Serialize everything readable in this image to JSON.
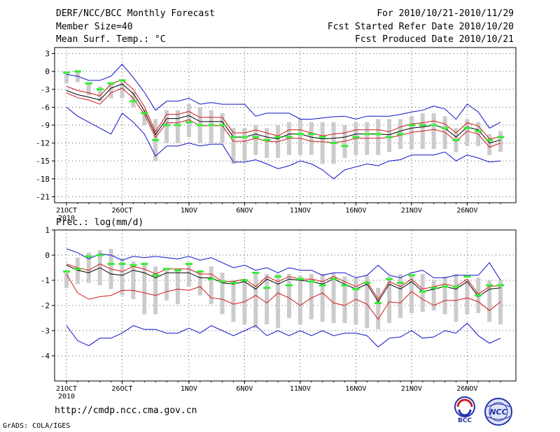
{
  "header": {
    "title": "DERF/NCC/BCC Monthly Forecast",
    "member_size": "Member Size=40",
    "period": "For 2010/10/21-2010/11/29",
    "started": "Fcst Started Refer Date 2010/10/20",
    "produced": "Fcst Produced Date 2010/10/21"
  },
  "footer": {
    "url": "http://cmdp.ncc.cma.gov.cn",
    "grads": "GrADS: COLA/IGES",
    "logo_bcc": "BCC",
    "logo_ncc": "NCC"
  },
  "colors": {
    "envelope": "#1010c8",
    "inner": "#d01818",
    "mean": "#000000",
    "box": "#cccccc",
    "median": "#33ee33",
    "grid": "#555555"
  },
  "chart_data": [
    {
      "type": "line",
      "title": "Mean Surf. Temp.: °C",
      "x": [
        "2010-10-21",
        "2010-10-22",
        "2010-10-23",
        "2010-10-24",
        "2010-10-25",
        "2010-10-26",
        "2010-10-27",
        "2010-10-28",
        "2010-10-29",
        "2010-10-30",
        "2010-10-31",
        "2010-11-01",
        "2010-11-02",
        "2010-11-03",
        "2010-11-04",
        "2010-11-05",
        "2010-11-06",
        "2010-11-07",
        "2010-11-08",
        "2010-11-09",
        "2010-11-10",
        "2010-11-11",
        "2010-11-12",
        "2010-11-13",
        "2010-11-14",
        "2010-11-15",
        "2010-11-16",
        "2010-11-17",
        "2010-11-18",
        "2010-11-19",
        "2010-11-20",
        "2010-11-21",
        "2010-11-22",
        "2010-11-23",
        "2010-11-24",
        "2010-11-25",
        "2010-11-26",
        "2010-11-27",
        "2010-11-28",
        "2010-11-29"
      ],
      "xtick_labels": [
        "21OCT\n2010",
        "26OCT",
        "1NOV",
        "6NOV",
        "11NOV",
        "16NOV",
        "21NOV",
        "26NOV"
      ],
      "xtick_index": [
        0,
        5,
        11,
        16,
        21,
        26,
        31,
        36
      ],
      "ylim": [
        -22,
        4
      ],
      "yticks": [
        3,
        0,
        -3,
        -6,
        -9,
        -12,
        -15,
        -18,
        -21
      ],
      "series": [
        {
          "name": "max",
          "values": [
            -0.5,
            -0.8,
            -1.5,
            -1.5,
            -0.8,
            1.2,
            -1.0,
            -3.5,
            -6.5,
            -5.0,
            -5.0,
            -4.5,
            -5.5,
            -5.2,
            -5.5,
            -5.5,
            -5.5,
            -7.5,
            -7.0,
            -7.0,
            -7.0,
            -8.0,
            -8.0,
            -7.8,
            -7.6,
            -7.5,
            -8.0,
            -7.5,
            -7.5,
            -7.5,
            -7.2,
            -6.8,
            -6.5,
            -5.8,
            -6.3,
            -8.0,
            -5.5,
            -6.8,
            -9.5,
            -8.5
          ]
        },
        {
          "name": "upper",
          "values": [
            -2.5,
            -3.2,
            -3.6,
            -4.1,
            -2.1,
            -1.4,
            -3.0,
            -5.9,
            -10.1,
            -7.2,
            -7.2,
            -6.7,
            -7.7,
            -7.7,
            -7.7,
            -10.3,
            -10.3,
            -9.8,
            -10.3,
            -10.8,
            -9.8,
            -9.8,
            -10.3,
            -10.8,
            -10.5,
            -10.3,
            -9.8,
            -9.8,
            -9.8,
            -10.1,
            -9.3,
            -8.8,
            -8.6,
            -8.3,
            -8.8,
            -10.3,
            -8.6,
            -9.1,
            -11.3,
            -11.0
          ]
        },
        {
          "name": "mean",
          "values": [
            -3.2,
            -3.9,
            -4.3,
            -4.8,
            -2.8,
            -2.1,
            -3.7,
            -6.6,
            -10.6,
            -7.9,
            -7.9,
            -7.4,
            -8.4,
            -8.4,
            -8.4,
            -11.0,
            -11.0,
            -10.5,
            -11.0,
            -11.3,
            -10.5,
            -10.5,
            -11.0,
            -11.3,
            -11.2,
            -11.0,
            -10.5,
            -10.5,
            -10.5,
            -10.6,
            -10.0,
            -9.5,
            -9.3,
            -9.0,
            -9.5,
            -11.0,
            -9.3,
            -9.8,
            -12.0,
            -11.5
          ]
        },
        {
          "name": "lower",
          "values": [
            -3.6,
            -4.4,
            -4.8,
            -5.5,
            -3.6,
            -2.8,
            -4.5,
            -7.2,
            -11.1,
            -8.6,
            -8.6,
            -8.1,
            -9.1,
            -9.1,
            -9.1,
            -11.7,
            -11.7,
            -11.2,
            -11.7,
            -11.8,
            -11.2,
            -11.2,
            -11.7,
            -11.8,
            -11.9,
            -11.7,
            -11.2,
            -11.2,
            -11.2,
            -11.1,
            -10.7,
            -10.2,
            -10.0,
            -9.7,
            -10.2,
            -11.7,
            -10.0,
            -10.5,
            -12.7,
            -12.0
          ]
        },
        {
          "name": "min",
          "values": [
            -6.0,
            -7.5,
            -8.5,
            -9.5,
            -10.5,
            -7.0,
            -8.5,
            -10.5,
            -14.2,
            -12.5,
            -12.5,
            -12.0,
            -12.5,
            -12.2,
            -12.2,
            -15.2,
            -15.2,
            -14.8,
            -15.5,
            -16.3,
            -15.8,
            -15.0,
            -15.5,
            -16.5,
            -18.0,
            -16.5,
            -16.0,
            -15.5,
            -15.8,
            -15.0,
            -14.8,
            -14.0,
            -14.0,
            -14.0,
            -13.5,
            -15.0,
            -14.0,
            -14.5,
            -15.2,
            -15.0
          ]
        },
        {
          "name": "box_top",
          "values": [
            -0.3,
            0.2,
            -1.8,
            -2.5,
            -2.0,
            -1.5,
            -3.5,
            -6.5,
            -8.0,
            -6.5,
            -6.5,
            -5.5,
            -6.0,
            -6.5,
            -7.0,
            -9.5,
            -9.5,
            -9.0,
            -9.5,
            -9.0,
            -8.5,
            -8.0,
            -8.5,
            -8.5,
            -8.5,
            -9.0,
            -8.5,
            -8.5,
            -8.0,
            -8.0,
            -8.0,
            -7.5,
            -7.0,
            -7.0,
            -7.5,
            -9.5,
            -8.0,
            -8.5,
            -10.5,
            -10.0
          ]
        },
        {
          "name": "box_bottom",
          "values": [
            -2.0,
            -1.8,
            -4.0,
            -5.0,
            -4.5,
            -4.5,
            -6.0,
            -9.0,
            -15.0,
            -12.0,
            -12.0,
            -11.0,
            -12.0,
            -12.0,
            -12.0,
            -15.5,
            -15.0,
            -14.0,
            -14.5,
            -14.5,
            -14.0,
            -14.0,
            -14.0,
            -15.5,
            -15.5,
            -14.5,
            -14.0,
            -14.0,
            -14.0,
            -13.5,
            -13.0,
            -13.0,
            -13.0,
            -13.0,
            -13.0,
            -13.5,
            -12.5,
            -12.5,
            -14.0,
            -13.5
          ]
        },
        {
          "name": "median",
          "values": [
            -0.2,
            0.0,
            -2.0,
            -3.0,
            -2.0,
            -1.5,
            -5.0,
            -7.0,
            -11.5,
            -9.0,
            -9.0,
            -8.5,
            -9.0,
            -9.0,
            -9.0,
            -11.0,
            -11.0,
            -11.0,
            -11.5,
            -11.0,
            -11.0,
            -10.5,
            -10.5,
            -11.0,
            -12.0,
            -12.5,
            -11.0,
            -10.5,
            -10.5,
            -11.0,
            -10.5,
            -9.0,
            -9.0,
            -9.0,
            -9.5,
            -11.5,
            -9.5,
            -10.0,
            -11.5,
            -11.0
          ]
        }
      ]
    },
    {
      "type": "line",
      "title": "Prec.: log(mm/d)",
      "x": [
        "2010-10-21",
        "2010-10-22",
        "2010-10-23",
        "2010-10-24",
        "2010-10-25",
        "2010-10-26",
        "2010-10-27",
        "2010-10-28",
        "2010-10-29",
        "2010-10-30",
        "2010-10-31",
        "2010-11-01",
        "2010-11-02",
        "2010-11-03",
        "2010-11-04",
        "2010-11-05",
        "2010-11-06",
        "2010-11-07",
        "2010-11-08",
        "2010-11-09",
        "2010-11-10",
        "2010-11-11",
        "2010-11-12",
        "2010-11-13",
        "2010-11-14",
        "2010-11-15",
        "2010-11-16",
        "2010-11-17",
        "2010-11-18",
        "2010-11-19",
        "2010-11-20",
        "2010-11-21",
        "2010-11-22",
        "2010-11-23",
        "2010-11-24",
        "2010-11-25",
        "2010-11-26",
        "2010-11-27",
        "2010-11-28",
        "2010-11-29"
      ],
      "xtick_labels": [
        "21OCT\n2010",
        "26OCT",
        "1NOV",
        "6NOV",
        "11NOV",
        "16NOV",
        "21NOV",
        "26NOV"
      ],
      "xtick_index": [
        0,
        5,
        11,
        16,
        21,
        26,
        31,
        36
      ],
      "ylim": [
        -5,
        1
      ],
      "yticks": [
        1,
        0,
        -1,
        -2,
        -3,
        -4
      ],
      "series": [
        {
          "name": "max",
          "values": [
            0.25,
            0.1,
            -0.15,
            0.05,
            0.0,
            -0.2,
            -0.05,
            -0.1,
            -0.05,
            -0.1,
            -0.15,
            -0.05,
            -0.2,
            -0.1,
            -0.3,
            -0.5,
            -0.4,
            -0.6,
            -0.5,
            -0.7,
            -0.5,
            -0.6,
            -0.6,
            -0.8,
            -0.7,
            -0.7,
            -0.9,
            -0.8,
            -0.4,
            -0.8,
            -0.9,
            -0.7,
            -0.6,
            -0.9,
            -0.9,
            -0.8,
            -0.8,
            -0.8,
            -0.3,
            -1.0
          ]
        },
        {
          "name": "upper",
          "values": [
            -0.35,
            -0.5,
            -0.6,
            -0.35,
            -0.55,
            -0.65,
            -0.45,
            -0.55,
            -0.75,
            -0.55,
            -0.55,
            -0.55,
            -0.75,
            -0.75,
            -1.05,
            -1.05,
            -0.95,
            -1.25,
            -0.85,
            -1.05,
            -0.85,
            -0.95,
            -0.95,
            -1.05,
            -0.85,
            -1.05,
            -1.25,
            -1.05,
            -1.75,
            -1.05,
            -1.25,
            -0.95,
            -1.35,
            -1.25,
            -1.15,
            -1.25,
            -0.95,
            -1.55,
            -1.25,
            -1.2
          ]
        },
        {
          "name": "mean",
          "values": [
            -0.4,
            -0.6,
            -0.7,
            -0.5,
            -0.75,
            -0.8,
            -0.6,
            -0.7,
            -0.9,
            -0.7,
            -0.7,
            -0.7,
            -0.9,
            -0.9,
            -1.1,
            -1.15,
            -1.05,
            -1.35,
            -0.95,
            -1.15,
            -0.95,
            -1.0,
            -1.05,
            -1.15,
            -0.95,
            -1.15,
            -1.35,
            -1.15,
            -1.85,
            -1.15,
            -1.35,
            -1.05,
            -1.45,
            -1.35,
            -1.25,
            -1.35,
            -1.05,
            -1.65,
            -1.35,
            -1.3
          ]
        },
        {
          "name": "lower",
          "values": [
            -0.75,
            -1.5,
            -1.75,
            -1.65,
            -1.6,
            -1.4,
            -1.4,
            -1.5,
            -1.6,
            -1.45,
            -1.35,
            -1.4,
            -1.25,
            -1.7,
            -1.75,
            -1.95,
            -1.85,
            -1.6,
            -1.9,
            -1.5,
            -1.7,
            -2.0,
            -1.7,
            -1.5,
            -1.9,
            -2.0,
            -1.75,
            -1.95,
            -2.55,
            -1.85,
            -1.9,
            -1.45,
            -1.75,
            -2.0,
            -1.8,
            -1.8,
            -1.7,
            -1.85,
            -2.2,
            -1.85
          ]
        },
        {
          "name": "min",
          "values": [
            -2.8,
            -3.4,
            -3.6,
            -3.3,
            -3.3,
            -3.1,
            -2.8,
            -2.95,
            -2.95,
            -3.1,
            -3.1,
            -2.9,
            -3.1,
            -2.8,
            -3.0,
            -3.2,
            -3.0,
            -2.8,
            -3.2,
            -3.0,
            -3.2,
            -3.0,
            -3.2,
            -3.0,
            -3.2,
            -3.1,
            -3.1,
            -3.2,
            -3.65,
            -3.3,
            -3.25,
            -3.0,
            -3.3,
            -3.25,
            -3.0,
            -3.1,
            -2.7,
            -3.2,
            -3.5,
            -3.3
          ]
        },
        {
          "name": "box_top",
          "values": [
            -0.6,
            -0.1,
            0.1,
            0.2,
            0.25,
            -0.15,
            -0.25,
            -0.3,
            -0.45,
            -0.6,
            -0.55,
            -0.3,
            -0.6,
            -0.45,
            -0.7,
            -1.0,
            -1.0,
            -0.7,
            -0.75,
            -0.75,
            -0.75,
            -0.8,
            -0.75,
            -0.75,
            -0.7,
            -0.85,
            -0.9,
            -0.8,
            -1.3,
            -0.85,
            -0.75,
            -0.75,
            -0.75,
            -1.0,
            -0.85,
            -0.75,
            -1.0,
            -0.9,
            -1.0,
            -1.0
          ]
        },
        {
          "name": "box_bottom",
          "values": [
            -1.3,
            -1.15,
            -1.1,
            -1.2,
            -1.35,
            -1.6,
            -1.75,
            -2.35,
            -2.35,
            -1.8,
            -1.95,
            -1.25,
            -1.6,
            -1.95,
            -2.35,
            -2.65,
            -2.75,
            -2.9,
            -2.75,
            -2.9,
            -2.5,
            -2.75,
            -2.55,
            -2.65,
            -2.7,
            -2.7,
            -2.75,
            -2.9,
            -2.95,
            -2.7,
            -2.5,
            -2.3,
            -2.25,
            -2.2,
            -2.35,
            -2.65,
            -2.35,
            -2.3,
            -2.65,
            -2.75
          ]
        },
        {
          "name": "median",
          "values": [
            -0.65,
            -0.55,
            -0.05,
            0.0,
            -0.35,
            -0.35,
            -0.4,
            -0.35,
            -0.8,
            -0.55,
            -0.6,
            -0.35,
            -0.65,
            -0.95,
            -1.05,
            -1.1,
            -1.0,
            -0.7,
            -1.3,
            -0.85,
            -1.2,
            -0.95,
            -1.05,
            -1.2,
            -0.95,
            -1.2,
            -1.35,
            -1.1,
            -1.9,
            -0.95,
            -1.1,
            -0.8,
            -1.45,
            -1.3,
            -1.25,
            -1.25,
            -0.85,
            -1.6,
            -1.2,
            -1.2
          ]
        }
      ]
    }
  ]
}
